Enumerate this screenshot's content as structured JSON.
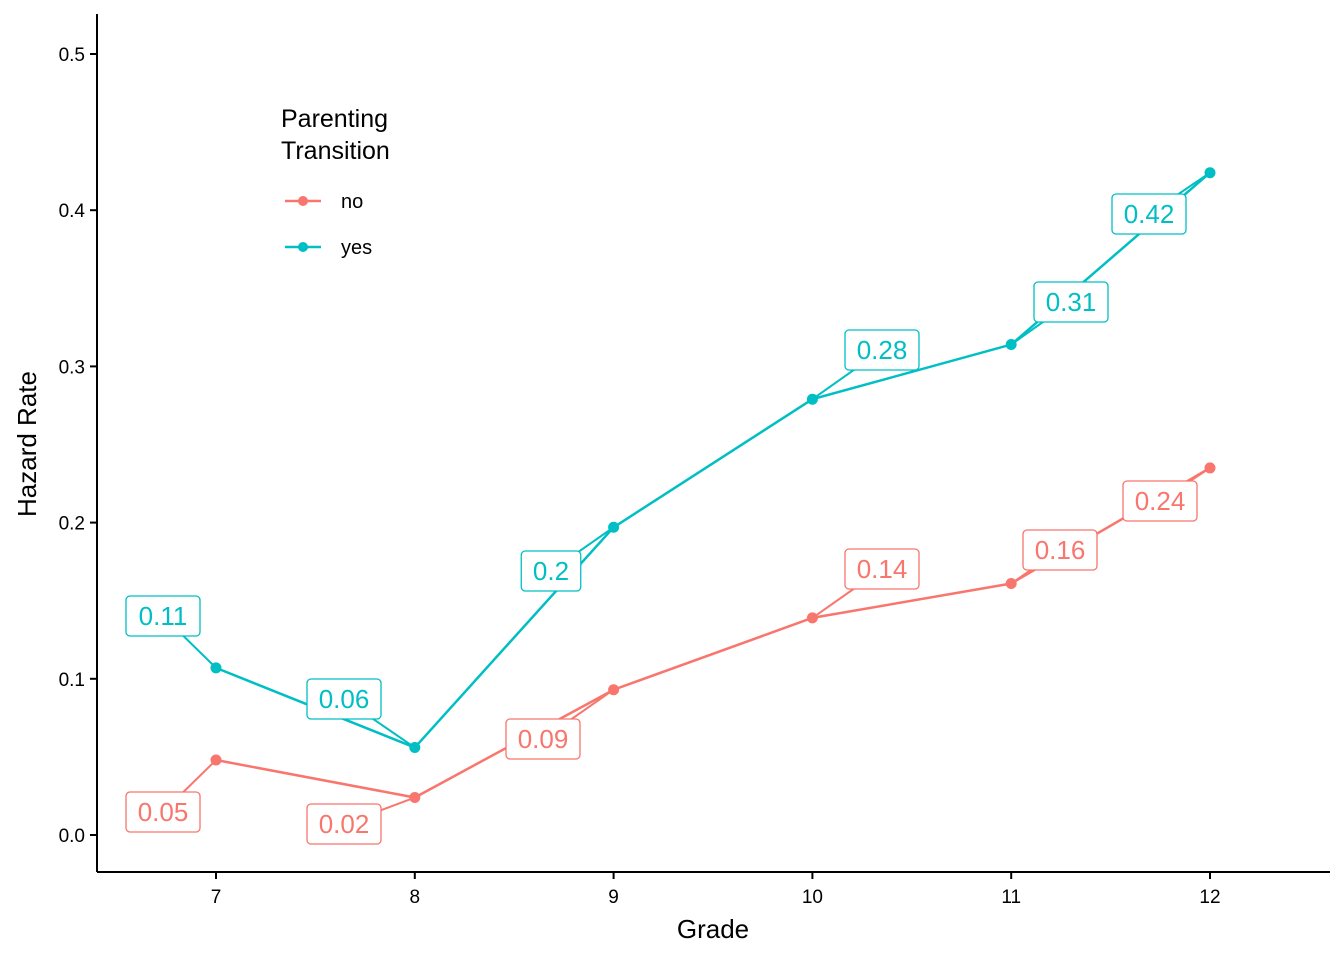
{
  "chart_data": {
    "type": "line",
    "title": "",
    "xlabel": "Grade",
    "ylabel": "Hazard Rate",
    "x": [
      7,
      8,
      9,
      10,
      11,
      12
    ],
    "xlim": [
      6.4,
      12.6
    ],
    "ylim": [
      -0.025,
      0.525
    ],
    "x_ticks": [
      "7",
      "8",
      "9",
      "10",
      "11",
      "12"
    ],
    "y_ticks": [
      "0.0",
      "0.1",
      "0.2",
      "0.3",
      "0.4",
      "0.5"
    ],
    "y_tick_values": [
      0,
      0.1,
      0.2,
      0.3,
      0.4,
      0.5
    ],
    "grid": false,
    "legend": {
      "title_line1": "Parenting",
      "title_line2": "Transition",
      "placement": "top-left-inside"
    },
    "series": [
      {
        "name": "no",
        "color": "#F8766D",
        "values": [
          0.048,
          0.024,
          0.093,
          0.139,
          0.161,
          0.235
        ],
        "labels": [
          "0.05",
          "0.02",
          "0.09",
          "0.14",
          "0.16",
          "0.24"
        ]
      },
      {
        "name": "yes",
        "color": "#00BFC4",
        "values": [
          0.107,
          0.056,
          0.197,
          0.279,
          0.314,
          0.424
        ],
        "labels": [
          "0.11",
          "0.06",
          "0.2",
          "0.28",
          "0.31",
          "0.42"
        ]
      }
    ]
  }
}
